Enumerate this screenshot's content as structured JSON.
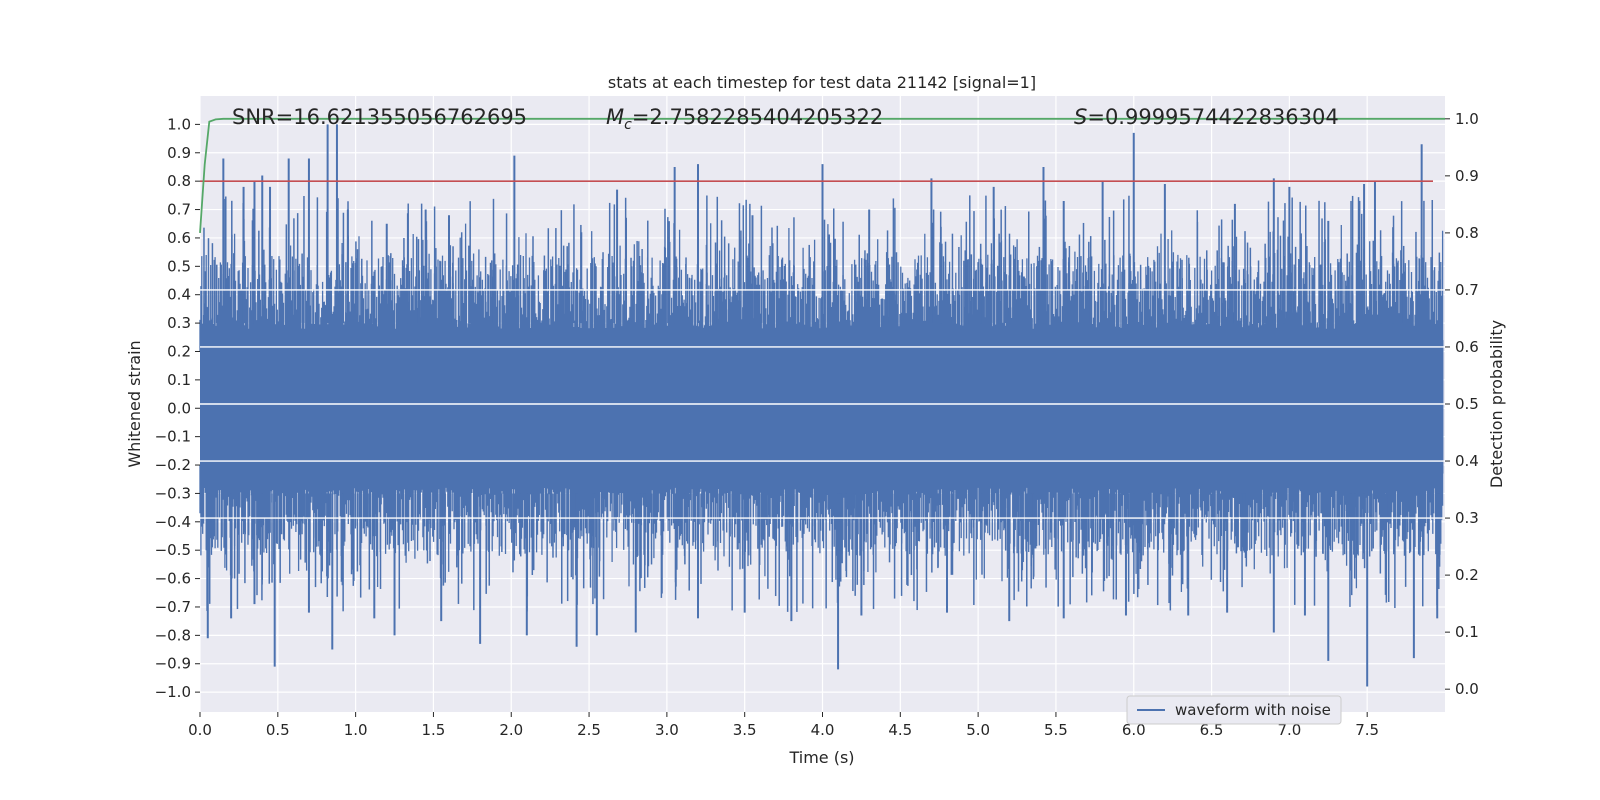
{
  "chart_data": {
    "type": "line",
    "title": "stats at each timestep for test data 21142 [signal=1]",
    "xlabel": "Time (s)",
    "ylabel_left": "Whitened strain",
    "ylabel_right": "Detection probability",
    "xlim": [
      0,
      8.0
    ],
    "ylim_left": [
      -1.07,
      1.1
    ],
    "ylim_right": [
      -0.04,
      1.04
    ],
    "x_ticks": [
      "0.0",
      "0.5",
      "1.0",
      "1.5",
      "2.0",
      "2.5",
      "3.0",
      "3.5",
      "4.0",
      "4.5",
      "5.0",
      "5.5",
      "6.0",
      "6.5",
      "7.0",
      "7.5"
    ],
    "y_ticks_left": [
      "1.0",
      "0.9",
      "0.8",
      "0.7",
      "0.6",
      "0.5",
      "0.4",
      "0.3",
      "0.2",
      "0.1",
      "0.0",
      "-0.1",
      "-0.2",
      "-0.3",
      "-0.4",
      "-0.5",
      "-0.6",
      "-0.7",
      "-0.8",
      "-0.9",
      "-1.0"
    ],
    "y_ticks_right": [
      "1.0",
      "0.9",
      "0.8",
      "0.7",
      "0.6",
      "0.5",
      "0.4",
      "0.3",
      "0.2",
      "0.1",
      "0.0"
    ],
    "grid": true,
    "legend_position": "lower-right",
    "annotations": {
      "snr": "SNR=16.621355056762695",
      "mc_symbol": "M",
      "mc_sub": "c",
      "mc_value": "=2.7582285404205322",
      "s_symbol": "S",
      "s_value": "=0.9999574422836304"
    },
    "series": [
      {
        "name": "waveform with noise",
        "axis": "left",
        "color": "#4c72b0",
        "description_range": [
          -0.98,
          1.0
        ]
      },
      {
        "axis": "left",
        "color": "#c44e52",
        "constant_y": 0.8
      },
      {
        "axis": "right",
        "color": "#55a868",
        "x": [
          0.0,
          0.03,
          0.06,
          0.1,
          0.15,
          0.25,
          8.0
        ],
        "y": [
          0.8,
          0.92,
          0.995,
          0.999,
          1.0,
          1.0,
          1.0
        ]
      }
    ],
    "spikes_up": [
      [
        0.15,
        0.88
      ],
      [
        0.28,
        0.78
      ],
      [
        0.35,
        0.8
      ],
      [
        0.4,
        0.82
      ],
      [
        0.45,
        0.78
      ],
      [
        0.57,
        0.88
      ],
      [
        0.7,
        0.88
      ],
      [
        0.82,
        1.0
      ],
      [
        0.88,
        1.0
      ],
      [
        0.95,
        0.7
      ],
      [
        1.2,
        0.65
      ],
      [
        1.45,
        0.7
      ],
      [
        1.6,
        0.68
      ],
      [
        2.02,
        0.89
      ],
      [
        2.45,
        0.62
      ],
      [
        2.68,
        0.77
      ],
      [
        3.05,
        0.85
      ],
      [
        3.2,
        0.86
      ],
      [
        3.55,
        0.68
      ],
      [
        4.0,
        0.86
      ],
      [
        4.3,
        0.7
      ],
      [
        4.7,
        0.81
      ],
      [
        5.1,
        0.78
      ],
      [
        5.42,
        0.85
      ],
      [
        5.55,
        0.73
      ],
      [
        5.8,
        0.8
      ],
      [
        6.0,
        0.97
      ],
      [
        6.2,
        0.79
      ],
      [
        6.65,
        0.72
      ],
      [
        6.9,
        0.81
      ],
      [
        7.0,
        0.78
      ],
      [
        7.25,
        0.66
      ],
      [
        7.48,
        0.79
      ],
      [
        7.55,
        0.8
      ],
      [
        7.85,
        0.93
      ]
    ],
    "spikes_down": [
      [
        0.05,
        -0.81
      ],
      [
        0.2,
        -0.74
      ],
      [
        0.35,
        -0.69
      ],
      [
        0.48,
        -0.91
      ],
      [
        0.7,
        -0.72
      ],
      [
        0.85,
        -0.85
      ],
      [
        1.12,
        -0.74
      ],
      [
        1.25,
        -0.8
      ],
      [
        1.55,
        -0.75
      ],
      [
        1.8,
        -0.83
      ],
      [
        2.1,
        -0.8
      ],
      [
        2.42,
        -0.84
      ],
      [
        2.55,
        -0.8
      ],
      [
        2.8,
        -0.79
      ],
      [
        3.2,
        -0.74
      ],
      [
        3.5,
        -0.72
      ],
      [
        3.8,
        -0.75
      ],
      [
        4.1,
        -0.92
      ],
      [
        4.25,
        -0.73
      ],
      [
        4.8,
        -0.72
      ],
      [
        5.2,
        -0.75
      ],
      [
        5.55,
        -0.74
      ],
      [
        5.95,
        -0.73
      ],
      [
        6.35,
        -0.73
      ],
      [
        6.6,
        -0.72
      ],
      [
        6.9,
        -0.79
      ],
      [
        7.1,
        -0.73
      ],
      [
        7.25,
        -0.89
      ],
      [
        7.5,
        -0.98
      ],
      [
        7.8,
        -0.88
      ],
      [
        7.95,
        -0.74
      ]
    ]
  }
}
